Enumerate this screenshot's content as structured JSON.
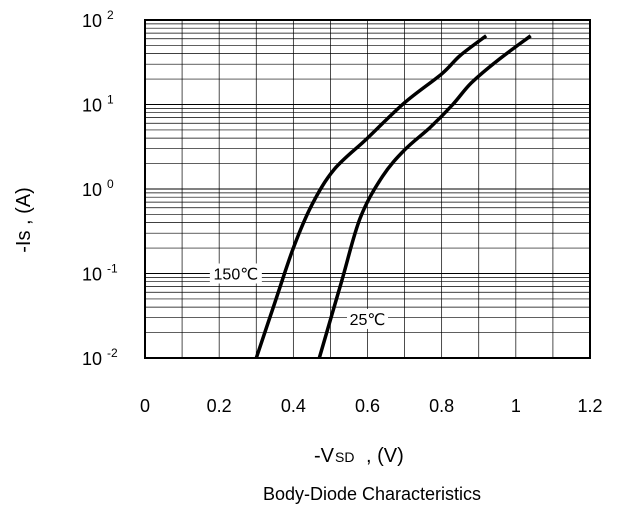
{
  "chart_data": {
    "type": "line",
    "title": "Body-Diode Characteristics",
    "xlabel": {
      "main": "-V",
      "sub": "SD",
      "unit": " , (V)"
    },
    "ylabel": "-Is , (A)",
    "xscale": "linear",
    "yscale": "log",
    "xlim": [
      0,
      1.2
    ],
    "ylim": [
      0.01,
      100
    ],
    "grid": true,
    "x_ticks": [
      "0",
      "0.2",
      "0.4",
      "0.6",
      "0.8",
      "1",
      "1.2"
    ],
    "x_tick_values": [
      0,
      0.2,
      0.4,
      0.6,
      0.8,
      1.0,
      1.2
    ],
    "y_ticks": [
      {
        "base": "10",
        "exp": "2",
        "value": 100
      },
      {
        "base": "10",
        "exp": "1",
        "value": 10
      },
      {
        "base": "10",
        "exp": "0",
        "value": 1
      },
      {
        "base": "10",
        "exp": "-1",
        "value": 0.1
      },
      {
        "base": "10",
        "exp": "-2",
        "value": 0.01
      }
    ],
    "series": [
      {
        "name": "150℃",
        "label_anchor": [
          0.245,
          0.1
        ],
        "points": [
          [
            0.3,
            0.01
          ],
          [
            0.35,
            0.045
          ],
          [
            0.4,
            0.2
          ],
          [
            0.45,
            0.65
          ],
          [
            0.51,
            1.7
          ],
          [
            0.6,
            4.0
          ],
          [
            0.7,
            10.5
          ],
          [
            0.8,
            23.0
          ],
          [
            0.85,
            38.0
          ],
          [
            0.92,
            65.0
          ]
        ]
      },
      {
        "name": "25℃",
        "label_anchor": [
          0.6,
          0.029
        ],
        "points": [
          [
            0.47,
            0.01
          ],
          [
            0.53,
            0.08
          ],
          [
            0.58,
            0.45
          ],
          [
            0.64,
            1.4
          ],
          [
            0.7,
            2.9
          ],
          [
            0.77,
            5.4
          ],
          [
            0.83,
            10.0
          ],
          [
            0.88,
            18.0
          ],
          [
            0.95,
            33.0
          ],
          [
            1.04,
            65.0
          ]
        ]
      }
    ]
  }
}
